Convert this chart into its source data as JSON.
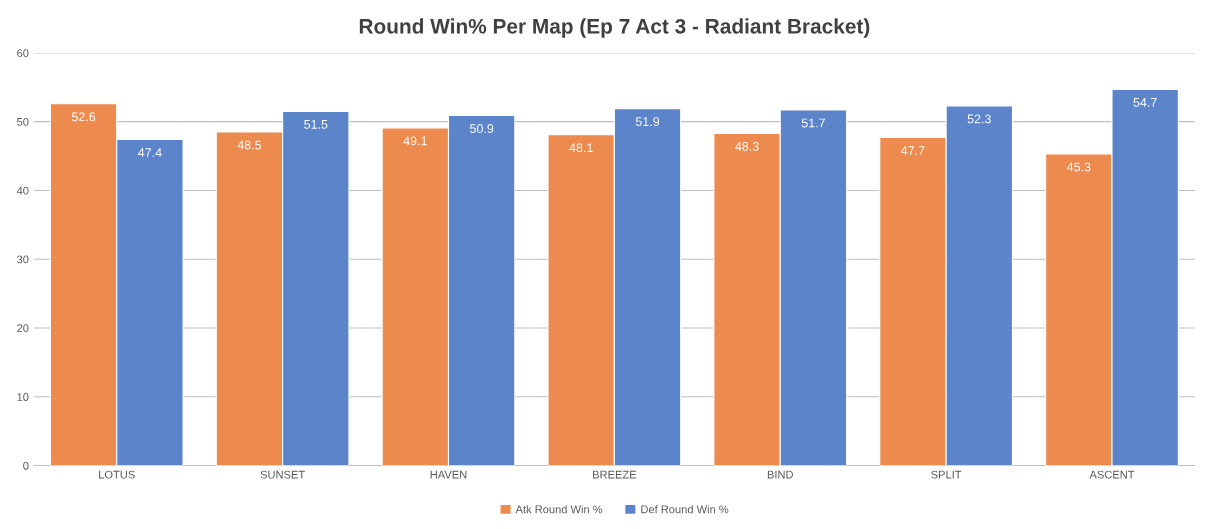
{
  "chart_data": {
    "type": "bar",
    "title": "Round Win% Per Map (Ep 7 Act 3 - Radiant Bracket)",
    "categories": [
      "LOTUS",
      "SUNSET",
      "HAVEN",
      "BREEZE",
      "BIND",
      "SPLIT",
      "ASCENT"
    ],
    "series": [
      {
        "name": "Atk Round Win %",
        "color": "#ed8a4d",
        "values": [
          52.6,
          48.5,
          49.1,
          48.1,
          48.3,
          47.7,
          45.3
        ]
      },
      {
        "name": "Def Round Win %",
        "color": "#5b84cb",
        "values": [
          47.4,
          51.5,
          50.9,
          51.9,
          51.7,
          52.3,
          54.7
        ]
      }
    ],
    "ylim": [
      0,
      60
    ],
    "yticks": [
      0,
      10,
      20,
      30,
      40,
      50,
      60
    ],
    "grid": "y",
    "legend": "bottom",
    "data_labels": true
  }
}
